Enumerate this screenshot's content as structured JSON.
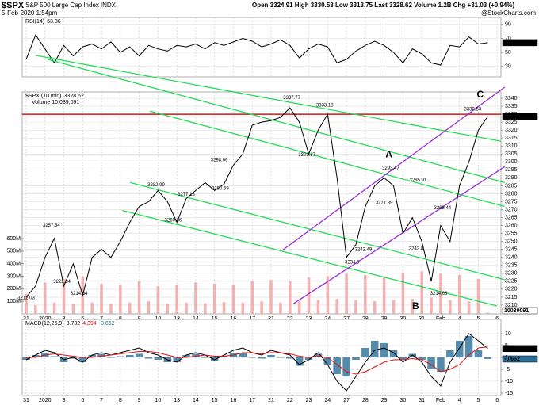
{
  "header": {
    "symbol": "$SPX",
    "name": "S&P 500 Large Cap Index",
    "exchange": "INDX",
    "date": "5-Feb-2020 1:54pm",
    "quote": "Open 3324.91 High 3330.53 Low 3313.75 Last 3328.62 Volume 1.2B Chg +31.03 (+0.94%)",
    "credit": "@StockCharts.com"
  },
  "chart_data": [
    {
      "type": "line",
      "label": "RSI(14)",
      "xtick_labels": false,
      "x": [
        0,
        0.5,
        1,
        1.5,
        2,
        2.5,
        3,
        3.5,
        4,
        4.5,
        5,
        5.5,
        6,
        6.5,
        7,
        7.5,
        8,
        8.5,
        9,
        9.5,
        10,
        10.5,
        11,
        11.5,
        12,
        12.5,
        13,
        13.5,
        14,
        14.5,
        15,
        15.5,
        16,
        16.5,
        17,
        17.5,
        18,
        18.5,
        19,
        19.5,
        20,
        20.5,
        21,
        21.5,
        22,
        22.5,
        23,
        23.5,
        24,
        24.5
      ],
      "xlim": [
        -0.21,
        25.2
      ],
      "xticks": [
        {
          "value": 0,
          "label": "31"
        },
        {
          "value": 1,
          "label": "2020"
        },
        {
          "value": 2,
          "label": "3"
        },
        {
          "value": 3,
          "label": "6"
        },
        {
          "value": 4,
          "label": "7"
        },
        {
          "value": 5,
          "label": "8"
        },
        {
          "value": 6,
          "label": "9"
        },
        {
          "value": 7,
          "label": "10"
        },
        {
          "value": 8,
          "label": "13"
        },
        {
          "value": 9,
          "label": "14"
        },
        {
          "value": 10,
          "label": "15"
        },
        {
          "value": 11,
          "label": "16"
        },
        {
          "value": 12,
          "label": "17"
        },
        {
          "value": 13,
          "label": "21"
        },
        {
          "value": 14,
          "label": "22"
        },
        {
          "value": 15,
          "label": "23"
        },
        {
          "value": 16,
          "label": "24"
        },
        {
          "value": 17,
          "label": "27"
        },
        {
          "value": 18,
          "label": "28"
        },
        {
          "value": 19,
          "label": "29"
        },
        {
          "value": 20,
          "label": "30"
        },
        {
          "value": 21,
          "label": "31"
        },
        {
          "value": 22,
          "label": "Feb"
        },
        {
          "value": 23,
          "label": "4"
        },
        {
          "value": 24,
          "label": "5"
        },
        {
          "value": 25,
          "label": "6"
        }
      ],
      "ylim": [
        15,
        100
      ],
      "yticks": [
        30,
        50,
        70,
        90
      ],
      "series": [
        {
          "color": "#000000",
          "box": true,
          "values": [
            40,
            75,
            55,
            35,
            60,
            45,
            58,
            62,
            55,
            65,
            50,
            58,
            45,
            60,
            55,
            52,
            60,
            58,
            62,
            55,
            64,
            60,
            65,
            70,
            66,
            58,
            62,
            68,
            60,
            42,
            55,
            62,
            58,
            35,
            40,
            52,
            60,
            66,
            60,
            50,
            35,
            55,
            48,
            35,
            32,
            60,
            58,
            72,
            62,
            63.86
          ]
        }
      ]
    },
    {
      "type": "line",
      "label": "$SPX (10 min)",
      "volume_label": "Volume 10,039,091",
      "xtick_labels": true,
      "x": [
        0,
        0.5,
        1,
        1.5,
        2,
        2.5,
        3,
        3.5,
        4,
        4.5,
        5,
        5.5,
        6,
        6.5,
        7,
        7.5,
        8,
        8.5,
        9,
        9.5,
        10,
        10.5,
        11,
        11.5,
        12,
        12.5,
        13,
        13.5,
        14,
        14.5,
        15,
        15.5,
        16,
        16.5,
        17,
        17.5,
        18,
        18.5,
        19,
        19.5,
        20,
        20.5,
        21,
        21.5,
        22,
        22.5,
        23,
        23.5,
        24,
        24.5
      ],
      "xlim": [
        -0.21,
        25.2
      ],
      "xticks": [
        {
          "value": 0,
          "label": "31"
        },
        {
          "value": 1,
          "label": "2020"
        },
        {
          "value": 2,
          "label": "3"
        },
        {
          "value": 3,
          "label": "6"
        },
        {
          "value": 4,
          "label": "7"
        },
        {
          "value": 5,
          "label": "8"
        },
        {
          "value": 6,
          "label": "9"
        },
        {
          "value": 7,
          "label": "10"
        },
        {
          "value": 8,
          "label": "13"
        },
        {
          "value": 9,
          "label": "14"
        },
        {
          "value": 10,
          "label": "15"
        },
        {
          "value": 11,
          "label": "16"
        },
        {
          "value": 12,
          "label": "17"
        },
        {
          "value": 13,
          "label": "21"
        },
        {
          "value": 14,
          "label": "22"
        },
        {
          "value": 15,
          "label": "23"
        },
        {
          "value": 16,
          "label": "24"
        },
        {
          "value": 17,
          "label": "27"
        },
        {
          "value": 18,
          "label": "28"
        },
        {
          "value": 19,
          "label": "29"
        },
        {
          "value": 20,
          "label": "30"
        },
        {
          "value": 21,
          "label": "31"
        },
        {
          "value": 22,
          "label": "Feb"
        },
        {
          "value": 23,
          "label": "4"
        },
        {
          "value": 24,
          "label": "5"
        },
        {
          "value": 25,
          "label": "6"
        }
      ],
      "ylim": [
        3204.5,
        3344
      ],
      "yticks": [
        3210,
        3215,
        3220,
        3225,
        3230,
        3235,
        3240,
        3245,
        3250,
        3255,
        3260,
        3265,
        3270,
        3275,
        3280,
        3285,
        3290,
        3295,
        3300,
        3305,
        3310,
        3315,
        3320,
        3325,
        3330,
        3335,
        3340
      ],
      "y2lim": [
        0,
        1770000000
      ],
      "y2ticks": [
        {
          "value": 100000000,
          "label": "100M"
        },
        {
          "value": 200000000,
          "label": "200M"
        },
        {
          "value": 300000000,
          "label": "300M"
        },
        {
          "value": 400000000,
          "label": "400M"
        },
        {
          "value": 500000000,
          "label": "500M"
        },
        {
          "value": 600000000,
          "label": "600M"
        }
      ],
      "series": [
        {
          "color": "#000000",
          "box": true,
          "values": [
            3215,
            3222,
            3240,
            3252,
            3222,
            3236,
            3216,
            3240,
            3245,
            3240,
            3250,
            3262,
            3272,
            3275,
            3282,
            3275,
            3262,
            3277,
            3282,
            3287,
            3282,
            3286,
            3298,
            3305,
            3323,
            3325,
            3326,
            3328,
            3334,
            3325,
            3305,
            3320,
            3330,
            3290,
            3240,
            3248,
            3272,
            3285,
            3290,
            3285,
            3255,
            3265,
            3250,
            3225,
            3260,
            3250,
            3285,
            3300,
            3320,
            3328.62
          ]
        },
        {
          "color": "#f0a0a0",
          "axis": "y2",
          "box": true,
          "values": [
            160000000,
            70000000,
            250000000,
            90000000,
            280000000,
            80000000,
            300000000,
            90000000,
            240000000,
            80000000,
            230000000,
            90000000,
            260000000,
            100000000,
            220000000,
            80000000,
            230000000,
            90000000,
            250000000,
            85000000,
            240000000,
            95000000,
            230000000,
            90000000,
            260000000,
            100000000,
            270000000,
            90000000,
            260000000,
            100000000,
            290000000,
            110000000,
            300000000,
            120000000,
            320000000,
            110000000,
            310000000,
            100000000,
            300000000,
            110000000,
            330000000,
            120000000,
            340000000,
            130000000,
            320000000,
            110000000,
            310000000,
            100000000,
            280000000,
            10039091
          ]
        }
      ],
      "hline": {
        "value": 3330,
        "color": "#e01010"
      },
      "trendlines": [
        {
          "color": "#22dd55",
          "x": [
            0.5,
            25.2
          ],
          "values": [
            3367,
            3313
          ]
        },
        {
          "color": "#22dd55",
          "x": [
            1.13,
            25.4
          ],
          "values": [
            3364.5,
            3287
          ]
        },
        {
          "color": "#22dd55",
          "x": [
            6.57,
            25.4
          ],
          "values": [
            3332,
            3272
          ]
        },
        {
          "color": "#22dd55",
          "x": [
            5.52,
            25.4
          ],
          "values": [
            3287,
            3226
          ]
        },
        {
          "color": "#22dd55",
          "x": [
            5.1,
            24.98
          ],
          "values": [
            3269.5,
            3209.5
          ]
        },
        {
          "color": "#9b30d9",
          "x": [
            13.6,
            25.4
          ],
          "values": [
            3244.5,
            3347
          ]
        },
        {
          "color": "#9b30d9",
          "x": [
            14.2,
            25.4
          ],
          "values": [
            3211,
            3297
          ]
        }
      ],
      "annotations": [
        {
          "text": "A",
          "x": 19.25,
          "value": 3304.5,
          "color": "#9b30d9"
        },
        {
          "text": "B",
          "x": 20.67,
          "value": 3209,
          "color": "#9b30d9"
        },
        {
          "text": "C",
          "x": 24.1,
          "value": 3342,
          "color": "#9b30d9"
        }
      ],
      "price_labels": [
        {
          "x": 0,
          "value": 3212.03
        },
        {
          "x": 1.34,
          "value": 3257.54
        },
        {
          "x": 1.9,
          "value": 3222.34
        },
        {
          "x": 2.8,
          "value": 3214.64
        },
        {
          "x": 6.9,
          "value": 3282.99
        },
        {
          "x": 7.8,
          "value": 3260.86
        },
        {
          "x": 8.5,
          "value": 3277.13
        },
        {
          "x": 10.25,
          "value": 3298.66
        },
        {
          "x": 10.3,
          "value": 3280.69
        },
        {
          "x": 14.1,
          "value": 3337.77
        },
        {
          "x": 14.9,
          "value": 3301.87
        },
        {
          "x": 15.85,
          "value": 3333.18
        },
        {
          "x": 19.35,
          "value": 3293.47
        },
        {
          "x": 19.0,
          "value": 3271.89
        },
        {
          "x": 20.8,
          "value": 3285.91
        },
        {
          "x": 17.9,
          "value": 3242.49
        },
        {
          "x": 20.7,
          "value": 3242.8
        },
        {
          "x": 17.3,
          "value": 3234.5
        },
        {
          "x": 22.1,
          "value": 3268.44
        },
        {
          "x": 21.9,
          "value": 3214.68
        },
        {
          "x": 23.7,
          "value": 3330.53
        }
      ]
    },
    {
      "type": "line",
      "label": "MACD(12,26,9)",
      "xtick_labels": true,
      "x": [
        0,
        0.5,
        1,
        1.5,
        2,
        2.5,
        3,
        3.5,
        4,
        4.5,
        5,
        5.5,
        6,
        6.5,
        7,
        7.5,
        8,
        8.5,
        9,
        9.5,
        10,
        10.5,
        11,
        11.5,
        12,
        12.5,
        13,
        13.5,
        14,
        14.5,
        15,
        15.5,
        16,
        16.5,
        17,
        17.5,
        18,
        18.5,
        19,
        19.5,
        20,
        20.5,
        21,
        21.5,
        22,
        22.5,
        23,
        23.5,
        24,
        24.5
      ],
      "xlim": [
        -0.21,
        25.2
      ],
      "xticks": [
        {
          "value": 0,
          "label": "31"
        },
        {
          "value": 1,
          "label": "2020"
        },
        {
          "value": 2,
          "label": "3"
        },
        {
          "value": 3,
          "label": "6"
        },
        {
          "value": 4,
          "label": "7"
        },
        {
          "value": 5,
          "label": "8"
        },
        {
          "value": 6,
          "label": "9"
        },
        {
          "value": 7,
          "label": "10"
        },
        {
          "value": 8,
          "label": "13"
        },
        {
          "value": 9,
          "label": "14"
        },
        {
          "value": 10,
          "label": "15"
        },
        {
          "value": 11,
          "label": "16"
        },
        {
          "value": 12,
          "label": "17"
        },
        {
          "value": 13,
          "label": "21"
        },
        {
          "value": 14,
          "label": "22"
        },
        {
          "value": 15,
          "label": "23"
        },
        {
          "value": 16,
          "label": "24"
        },
        {
          "value": 17,
          "label": "27"
        },
        {
          "value": 18,
          "label": "28"
        },
        {
          "value": 19,
          "label": "29"
        },
        {
          "value": 20,
          "label": "30"
        },
        {
          "value": 21,
          "label": "31"
        },
        {
          "value": 22,
          "label": "Feb"
        },
        {
          "value": 23,
          "label": "4"
        },
        {
          "value": 24,
          "label": "5"
        },
        {
          "value": 25,
          "label": "6"
        }
      ],
      "ylim": [
        -16,
        16
      ],
      "yticks": [
        -15,
        -10,
        -5,
        0,
        5,
        10
      ],
      "series": [
        {
          "color": "#000000",
          "box": true,
          "values": [
            -1,
            1,
            3,
            2,
            -1,
            0,
            -2,
            1,
            2,
            1,
            2,
            3,
            4,
            2,
            1,
            -1,
            -2,
            1,
            2,
            1,
            -1,
            1,
            3,
            4,
            2,
            1,
            3,
            2,
            1,
            -3,
            -1,
            2,
            -3,
            -10,
            -14,
            -8,
            -2,
            3,
            4,
            2,
            -2,
            1,
            -2,
            -8,
            -12,
            -2,
            4,
            10,
            7,
            3.732
          ]
        },
        {
          "color": "#e01010",
          "values": [
            0,
            0,
            1,
            1.5,
            1,
            0.5,
            0,
            0,
            0.5,
            1,
            1.5,
            2,
            2.5,
            2.5,
            2,
            1,
            0,
            0,
            0.5,
            1,
            0.5,
            0.5,
            1,
            2,
            2,
            1.5,
            2,
            2,
            1.5,
            0.5,
            0,
            0.5,
            0,
            -3,
            -6,
            -7,
            -6,
            -4,
            -2,
            -1,
            -1,
            -0.5,
            -1,
            -3,
            -6,
            -5,
            -3,
            1,
            4,
            4.394
          ]
        },
        {
          "color": "#2a6f97",
          "style": "bar",
          "box": true,
          "values": [
            -1,
            1,
            2,
            0.5,
            -2,
            -0.5,
            -2,
            1,
            1.5,
            0,
            0.5,
            1,
            1.5,
            -0.5,
            -1,
            -2,
            -2,
            1,
            1.5,
            0,
            -1.5,
            0.5,
            2,
            2,
            0,
            -0.5,
            1,
            0,
            -0.5,
            -3.5,
            -1,
            1.5,
            -3,
            -7,
            -8,
            -1,
            4,
            7,
            6,
            3,
            -1,
            1.5,
            -1,
            -5,
            -6,
            3,
            7,
            9,
            3,
            -0.662
          ]
        }
      ]
    }
  ]
}
